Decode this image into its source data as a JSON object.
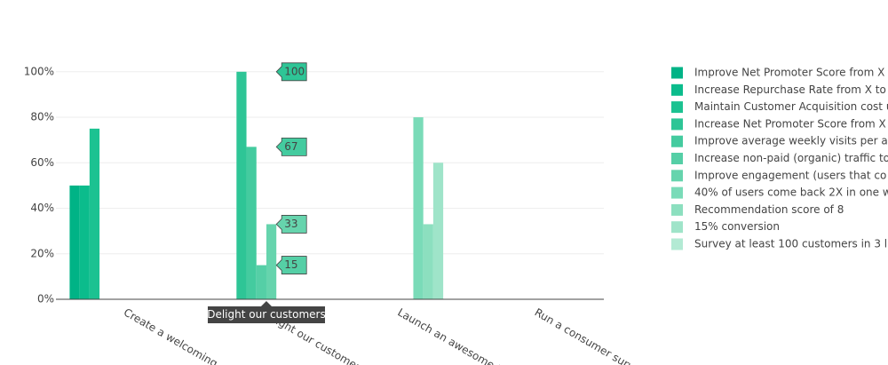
{
  "chart_data": {
    "type": "bar",
    "categories": [
      "Create a welcoming c",
      "Delight our customers",
      "Launch an awesome N",
      "Run a consumer surv"
    ],
    "series": [
      {
        "name": "Improve Net Promoter Score from X",
        "color": "#00b386",
        "values": [
          50,
          null,
          null,
          null
        ]
      },
      {
        "name": "Increase Repurchase Rate from X to",
        "color": "#0bbc8c",
        "values": [
          50,
          null,
          null,
          null
        ]
      },
      {
        "name": "Maintain Customer Acquisition cost u",
        "color": "#1cc291",
        "values": [
          75,
          null,
          null,
          null
        ]
      },
      {
        "name": "Increase Net Promoter Score from X",
        "color": "#2ec596",
        "values": [
          null,
          100,
          null,
          null
        ]
      },
      {
        "name": "Improve average weekly visits per a",
        "color": "#44cb9f",
        "values": [
          null,
          67,
          null,
          null
        ]
      },
      {
        "name": "Increase non-paid (organic) traffic to",
        "color": "#55cfa6",
        "values": [
          null,
          15,
          null,
          null
        ]
      },
      {
        "name": "Improve engagement (users that co",
        "color": "#66d4ad",
        "values": [
          null,
          33,
          null,
          null
        ]
      },
      {
        "name": "40% of users come back 2X in one w",
        "color": "#7adbb8",
        "values": [
          null,
          null,
          80,
          null
        ]
      },
      {
        "name": "Recommendation score of 8",
        "color": "#8cdfbf",
        "values": [
          null,
          null,
          33,
          null
        ]
      },
      {
        "name": "15% conversion",
        "color": "#9fe4c9",
        "values": [
          null,
          null,
          60,
          null
        ]
      },
      {
        "name": "Survey at least 100 customers in 3 l",
        "color": "#b3ead4",
        "values": [
          null,
          null,
          null,
          null
        ]
      }
    ],
    "ylim": [
      0,
      105
    ],
    "yticks": [
      {
        "value": 0,
        "label": "0%"
      },
      {
        "value": 20,
        "label": "20%"
      },
      {
        "value": 40,
        "label": "40%"
      },
      {
        "value": 60,
        "label": "60%"
      },
      {
        "value": 80,
        "label": "80%"
      },
      {
        "value": 100,
        "label": "100%"
      }
    ],
    "grid": true
  }
}
